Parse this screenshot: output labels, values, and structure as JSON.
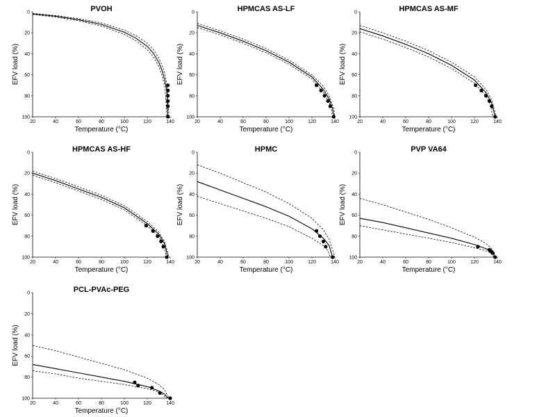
{
  "figure": {
    "xlabel": "Temperature (°C)",
    "ylabel": "EFV load (%)",
    "xticks": [
      "20",
      "40",
      "60",
      "80",
      "100",
      "120",
      "140"
    ],
    "yticks": [
      "0",
      "20",
      "40",
      "60",
      "80",
      "100"
    ]
  },
  "chart_data": [
    {
      "type": "line",
      "title": "PVOH",
      "xlabel": "Temperature (°C)",
      "ylabel": "EFV load (%)",
      "xlim": [
        20,
        140
      ],
      "ylim": [
        0,
        100
      ],
      "y_inverted": true,
      "series": [
        {
          "style": "solid",
          "x": [
            20,
            40,
            60,
            80,
            100,
            110,
            120,
            125,
            130,
            133,
            135,
            137,
            138
          ],
          "y": [
            2,
            4.2,
            7.5,
            12,
            19.5,
            25,
            33,
            39,
            48,
            56,
            64,
            75,
            100
          ]
        },
        {
          "style": "dashed",
          "x": [
            20,
            40,
            60,
            80,
            100,
            110,
            120,
            125,
            130,
            133,
            135,
            137,
            139
          ],
          "y": [
            1.5,
            3.5,
            6.5,
            10.5,
            17.5,
            22.5,
            30,
            35.5,
            44,
            51,
            58,
            68,
            100
          ]
        },
        {
          "style": "dashed",
          "x": [
            20,
            40,
            60,
            80,
            100,
            110,
            120,
            125,
            130,
            133,
            135,
            136,
            137
          ],
          "y": [
            2.5,
            5,
            8.5,
            13.5,
            21.5,
            27.5,
            36,
            42.5,
            52,
            61,
            70,
            80,
            100
          ]
        },
        {
          "style": "points",
          "x": [
            138,
            138,
            138,
            138,
            138
          ],
          "y": [
            70,
            75,
            80,
            85,
            90
          ]
        },
        {
          "style": "points",
          "x": [
            138
          ],
          "y": [
            100
          ]
        }
      ]
    },
    {
      "type": "line",
      "title": "HPMCAS AS-LF",
      "xlabel": "Temperature (°C)",
      "ylabel": "EFV load (%)",
      "xlim": [
        20,
        140
      ],
      "ylim": [
        0,
        100
      ],
      "y_inverted": true,
      "series": [
        {
          "style": "solid",
          "x": [
            20,
            40,
            60,
            80,
            100,
            120,
            130,
            135,
            138,
            139
          ],
          "y": [
            13,
            20,
            28,
            37,
            48,
            62,
            74,
            83,
            92,
            100
          ]
        },
        {
          "style": "dashed",
          "x": [
            20,
            40,
            60,
            80,
            100,
            120,
            130,
            135,
            139,
            140
          ],
          "y": [
            11,
            18,
            26,
            35,
            46,
            60,
            71,
            80,
            92,
            100
          ]
        },
        {
          "style": "dashed",
          "x": [
            20,
            40,
            60,
            80,
            100,
            120,
            130,
            135,
            137,
            138
          ],
          "y": [
            15,
            22,
            30,
            39,
            50,
            64,
            77,
            86,
            93,
            100
          ]
        },
        {
          "style": "points",
          "x": [
            124,
            128,
            131,
            134,
            136,
            139
          ],
          "y": [
            70,
            75,
            80,
            85,
            90,
            100
          ]
        }
      ]
    },
    {
      "type": "line",
      "title": "HPMCAS AS-MF",
      "xlabel": "Temperature (°C)",
      "ylabel": "EFV load (%)",
      "xlim": [
        20,
        140
      ],
      "ylim": [
        0,
        100
      ],
      "y_inverted": true,
      "series": [
        {
          "style": "solid",
          "x": [
            20,
            40,
            60,
            80,
            100,
            120,
            130,
            135,
            138
          ],
          "y": [
            16,
            23,
            31,
            40,
            51,
            65,
            77,
            87,
            100
          ]
        },
        {
          "style": "dashed",
          "x": [
            20,
            40,
            60,
            80,
            100,
            120,
            130,
            135,
            139
          ],
          "y": [
            13,
            20,
            28,
            37,
            48,
            62,
            74,
            84,
            100
          ]
        },
        {
          "style": "dashed",
          "x": [
            20,
            40,
            60,
            80,
            100,
            120,
            130,
            134,
            136
          ],
          "y": [
            19,
            26,
            34,
            43,
            54,
            68,
            80,
            89,
            100
          ]
        },
        {
          "style": "points",
          "x": [
            121,
            126,
            130,
            133,
            135,
            138
          ],
          "y": [
            70,
            75,
            80,
            85,
            90,
            100
          ]
        }
      ]
    },
    {
      "type": "line",
      "title": "HPMCAS AS-HF",
      "xlabel": "Temperature (°C)",
      "ylabel": "EFV load (%)",
      "xlim": [
        20,
        140
      ],
      "ylim": [
        0,
        100
      ],
      "y_inverted": true,
      "series": [
        {
          "style": "solid",
          "x": [
            20,
            40,
            60,
            80,
            100,
            120,
            130,
            135,
            138
          ],
          "y": [
            20,
            27,
            35,
            43,
            53,
            68,
            78,
            87,
            100
          ]
        },
        {
          "style": "dashed",
          "x": [
            20,
            40,
            60,
            80,
            100,
            120,
            130,
            135,
            139
          ],
          "y": [
            18,
            25,
            33,
            41,
            51,
            66,
            76,
            85,
            100
          ]
        },
        {
          "style": "dashed",
          "x": [
            20,
            40,
            60,
            80,
            100,
            120,
            130,
            134,
            137
          ],
          "y": [
            22,
            29,
            37,
            45,
            55,
            70,
            80,
            89,
            100
          ]
        },
        {
          "style": "points",
          "x": [
            119,
            125,
            129,
            132,
            134,
            137
          ],
          "y": [
            70,
            75,
            80,
            85,
            90,
            100
          ]
        }
      ]
    },
    {
      "type": "line",
      "title": "HPMC",
      "xlabel": "Temperature (°C)",
      "ylabel": "EFV load (%)",
      "xlim": [
        20,
        140
      ],
      "ylim": [
        0,
        100
      ],
      "y_inverted": true,
      "series": [
        {
          "style": "solid",
          "x": [
            20,
            40,
            60,
            80,
            100,
            120,
            130,
            135,
            138
          ],
          "y": [
            28,
            36,
            44,
            52,
            61,
            73,
            82,
            89,
            100
          ]
        },
        {
          "style": "dashed",
          "x": [
            20,
            40,
            60,
            80,
            100,
            120,
            130,
            135,
            140
          ],
          "y": [
            12,
            20,
            29,
            38,
            49,
            63,
            74,
            83,
            100
          ]
        },
        {
          "style": "dashed",
          "x": [
            20,
            40,
            60,
            80,
            100,
            120,
            130,
            134,
            136
          ],
          "y": [
            42,
            49,
            56,
            63,
            71,
            82,
            89,
            94,
            100
          ]
        },
        {
          "style": "points",
          "x": [
            124,
            127,
            130,
            132,
            138
          ],
          "y": [
            75,
            80,
            85,
            90,
            100
          ]
        }
      ]
    },
    {
      "type": "line",
      "title": "PVP VA64",
      "xlabel": "Temperature (°C)",
      "ylabel": "EFV load (%)",
      "xlim": [
        20,
        140
      ],
      "ylim": [
        0,
        100
      ],
      "y_inverted": true,
      "series": [
        {
          "style": "solid",
          "x": [
            20,
            40,
            60,
            80,
            100,
            120,
            130,
            135,
            138
          ],
          "y": [
            63,
            67,
            72,
            77,
            82,
            88,
            92,
            95,
            100
          ]
        },
        {
          "style": "dashed",
          "x": [
            20,
            40,
            60,
            80,
            100,
            120,
            130,
            135,
            139
          ],
          "y": [
            44,
            50,
            57,
            64,
            72,
            81,
            87,
            92,
            100
          ]
        },
        {
          "style": "dashed",
          "x": [
            20,
            40,
            60,
            80,
            100,
            120,
            130,
            134,
            137
          ],
          "y": [
            70,
            74,
            78,
            82,
            86,
            91,
            94,
            96,
            100
          ]
        },
        {
          "style": "points",
          "x": [
            123,
            133,
            134,
            135,
            136,
            138
          ],
          "y": [
            90,
            93,
            94,
            95,
            96,
            100
          ]
        }
      ]
    },
    {
      "type": "line",
      "title": "PCL-PVAc-PEG",
      "xlabel": "Temperature (°C)",
      "ylabel": "EFV load (%)",
      "xlim": [
        20,
        140
      ],
      "ylim": [
        0,
        100
      ],
      "y_inverted": true,
      "series": [
        {
          "style": "solid",
          "x": [
            20,
            40,
            60,
            80,
            100,
            120,
            130,
            135,
            138
          ],
          "y": [
            68,
            72,
            76,
            80,
            84,
            89,
            93,
            96,
            100
          ]
        },
        {
          "style": "dashed",
          "x": [
            20,
            40,
            60,
            80,
            100,
            120,
            130,
            135,
            139
          ],
          "y": [
            50,
            55,
            61,
            67,
            73,
            81,
            87,
            92,
            100
          ]
        },
        {
          "style": "dashed",
          "x": [
            20,
            40,
            60,
            80,
            100,
            120,
            130,
            134,
            137
          ],
          "y": [
            74,
            77,
            81,
            84,
            87,
            91,
            94,
            97,
            100
          ]
        },
        {
          "style": "points",
          "x": [
            109,
            112,
            124,
            131,
            140
          ],
          "y": [
            85,
            88,
            90,
            95,
            100
          ]
        }
      ]
    }
  ]
}
